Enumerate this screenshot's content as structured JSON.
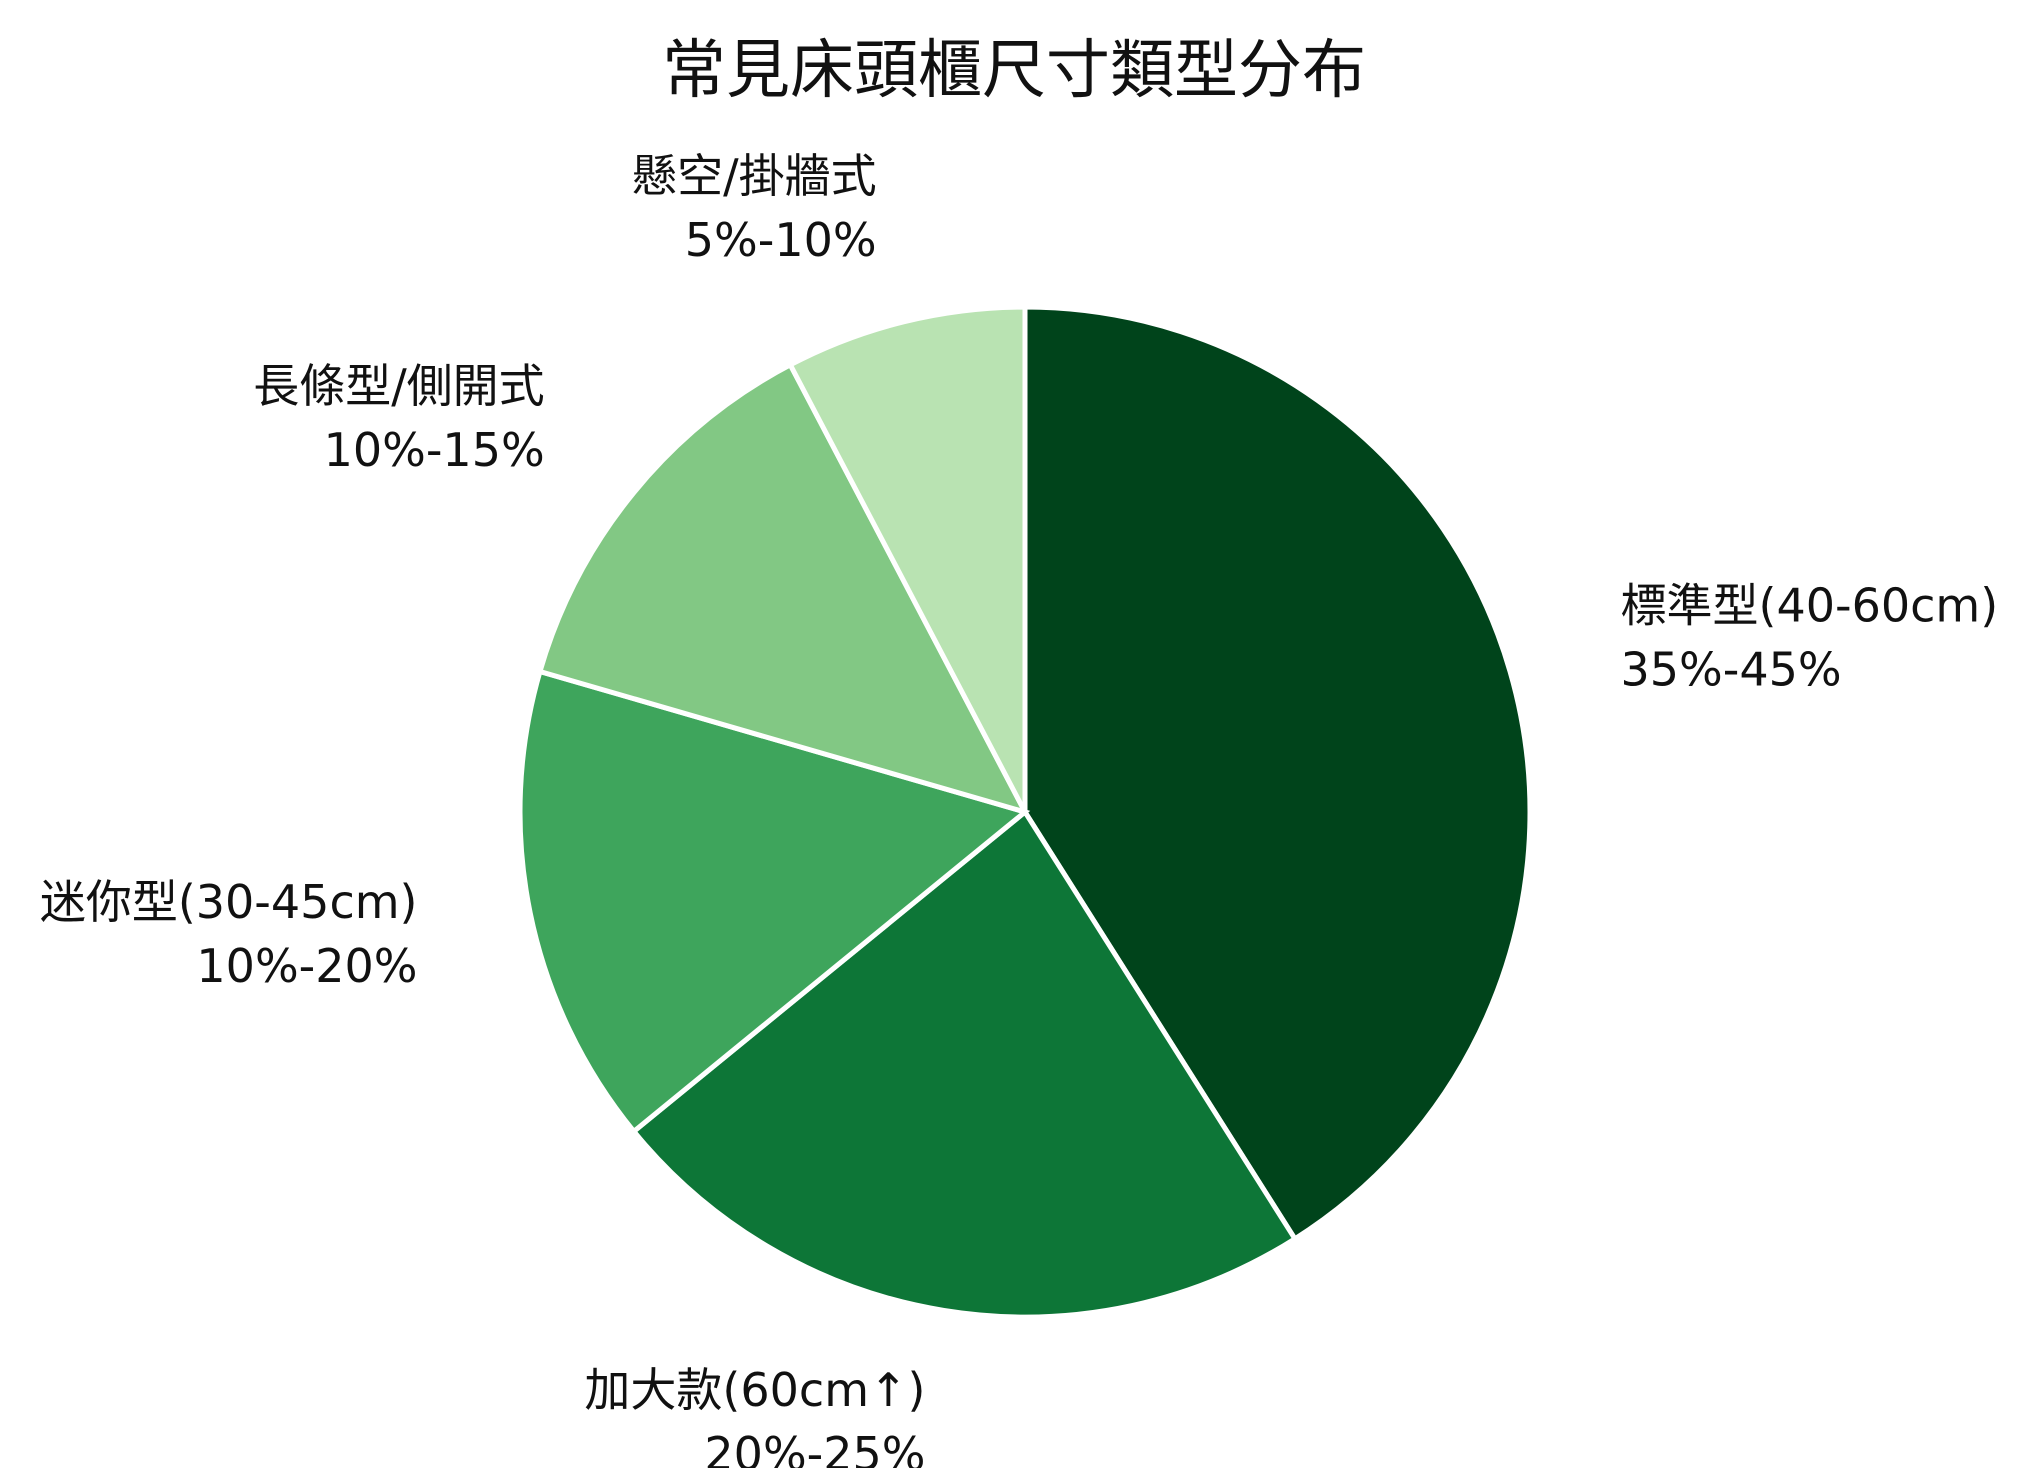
{
  "chart_data": {
    "type": "pie",
    "title": "常見床頭櫃尺寸類型分布",
    "start_angle_deg": 0,
    "direction": "clockwise",
    "slices": [
      {
        "name": "標準型(40-60cm)",
        "range": "35%-45%",
        "value": 40,
        "color": "#00441b"
      },
      {
        "name": "加大款(60cm↑)",
        "range": "20%-25%",
        "value": 22.5,
        "color": "#0d7637"
      },
      {
        "name": "迷你型(30-45cm)",
        "range": "10%-20%",
        "value": 15,
        "color": "#3ea55c"
      },
      {
        "name": "長條型/側開式",
        "range": "10%-15%",
        "value": 12.5,
        "color": "#82c884"
      },
      {
        "name": "懸空/掛牆式",
        "range": "5%-10%",
        "value": 7.5,
        "color": "#b9e3b2"
      }
    ]
  }
}
